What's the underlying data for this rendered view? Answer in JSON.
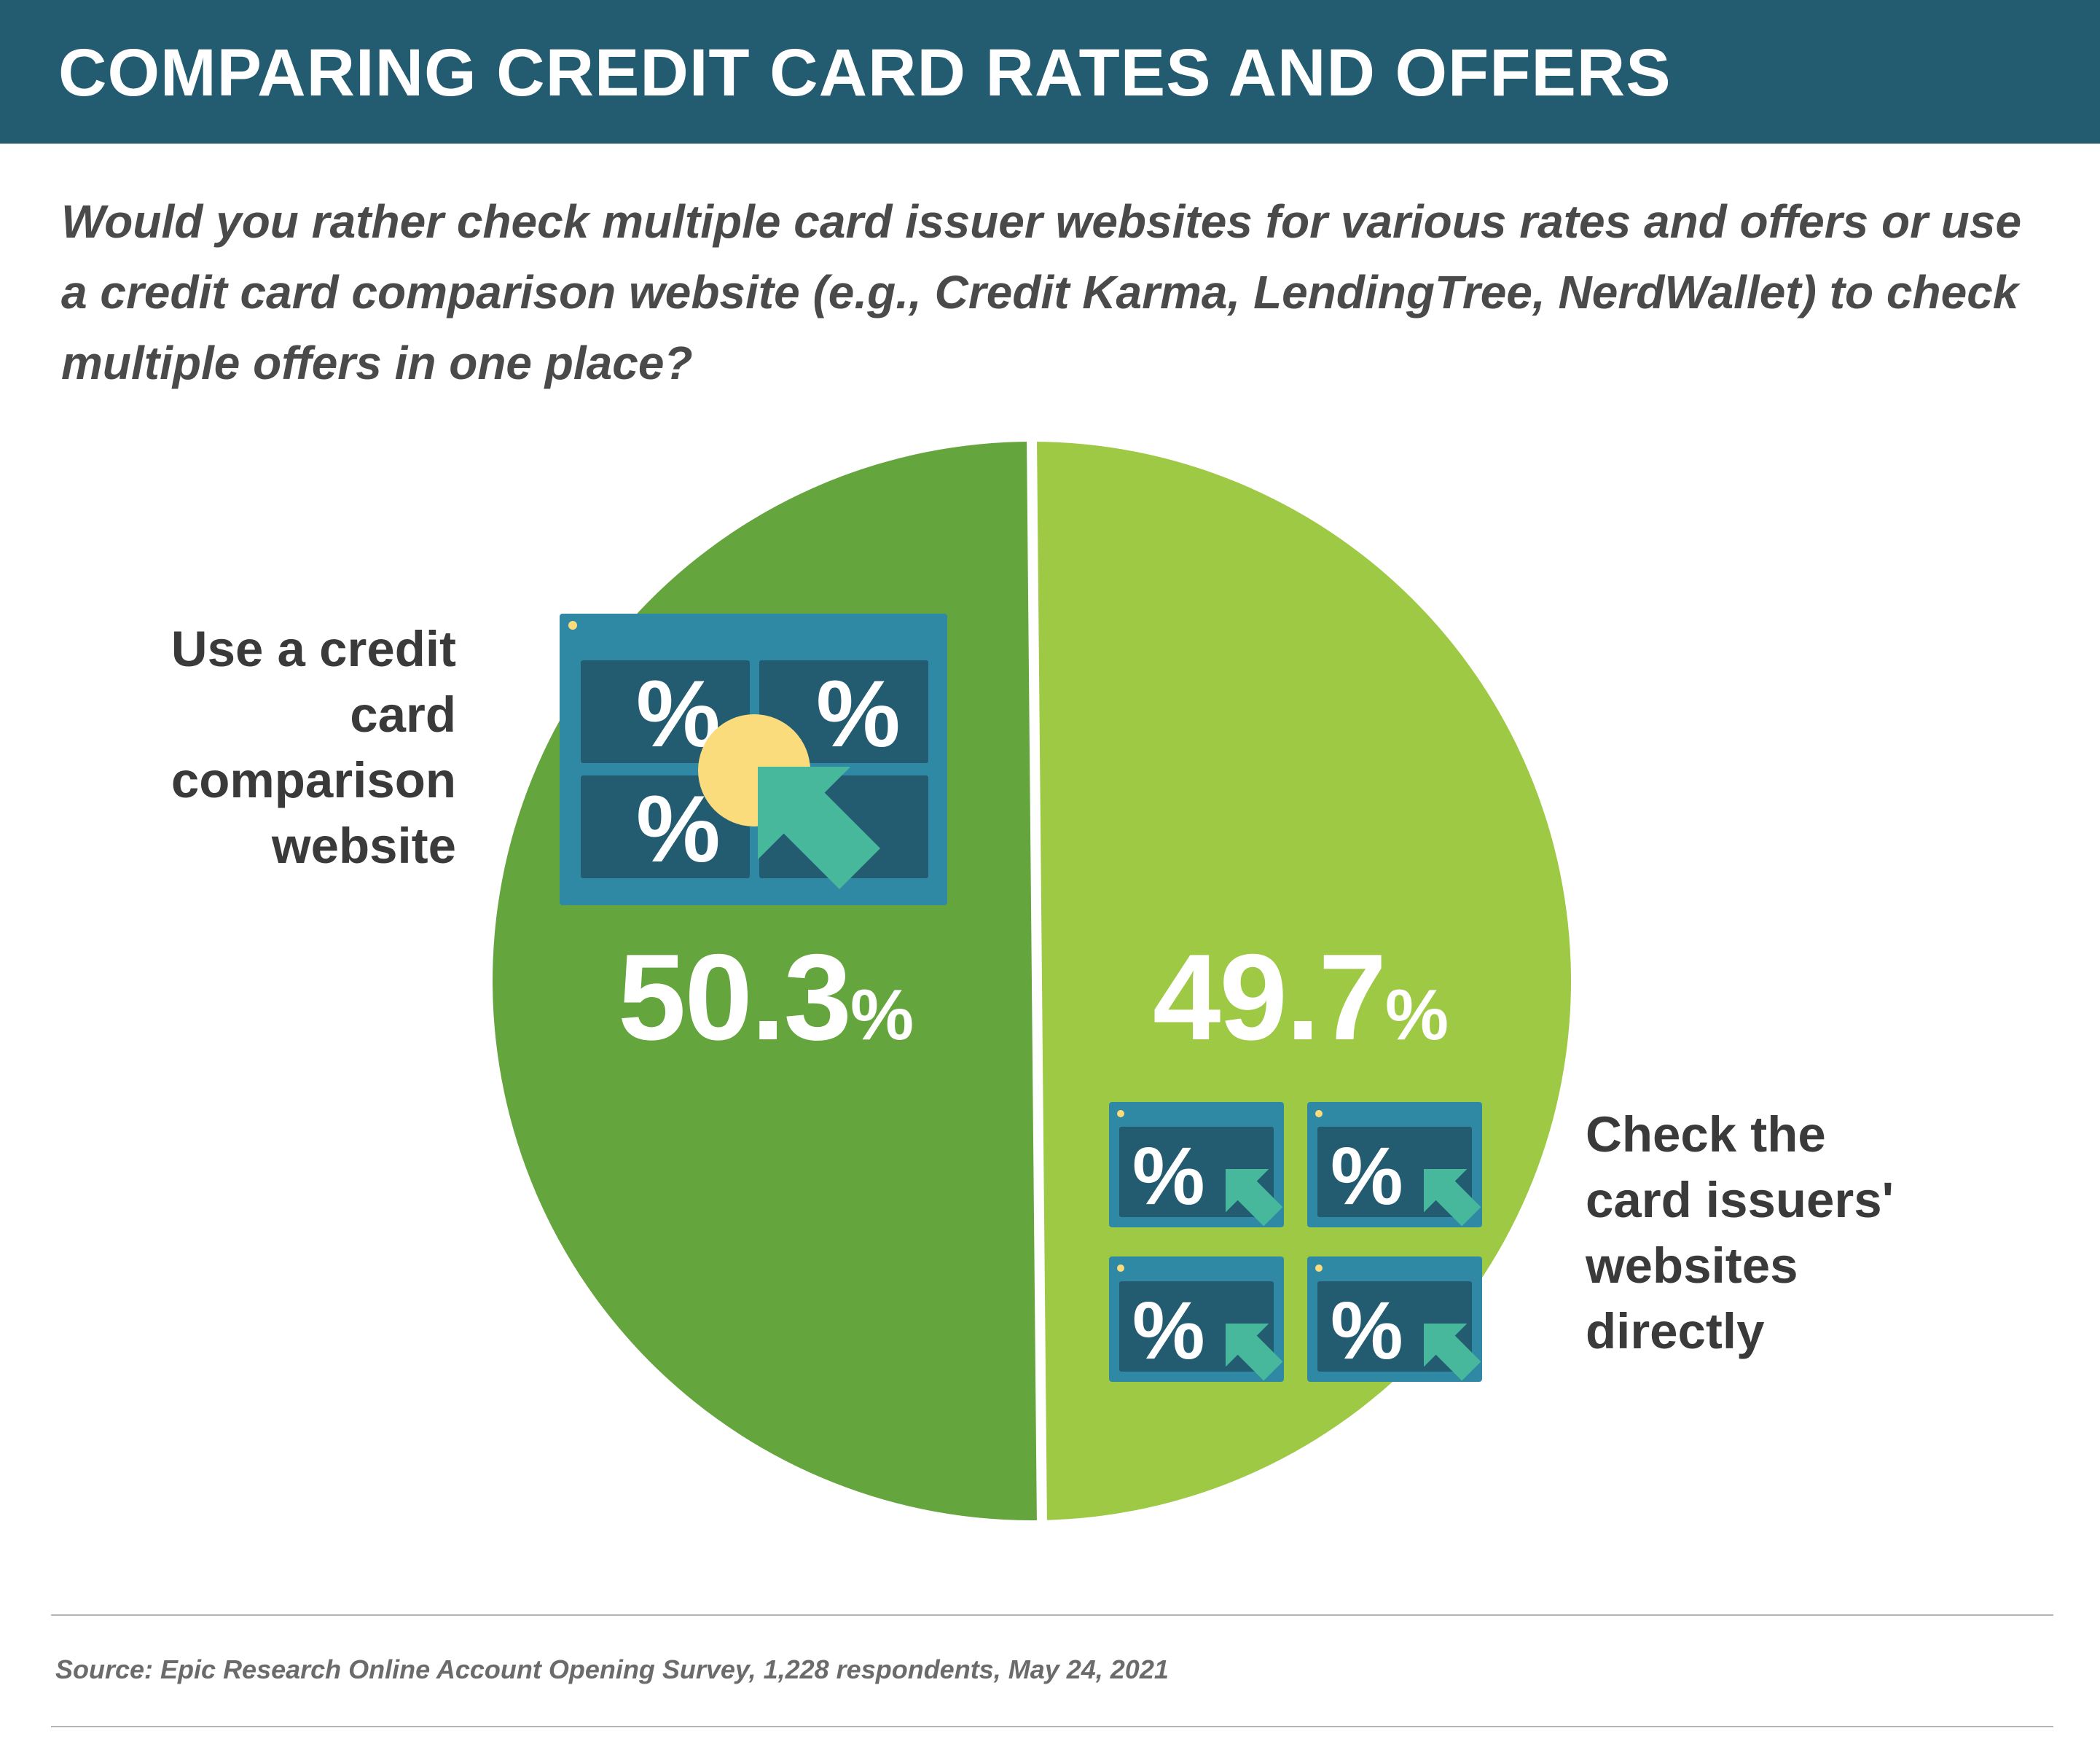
{
  "header": {
    "title": "COMPARING CREDIT CARD RATES AND OFFERS"
  },
  "subtitle": {
    "lines": [
      "Would you rather check multiple card issuer websites for various rates and offers or use",
      "a credit card comparison website (e.g., Credit Karma, LendingTree, NerdWallet) to check",
      "multiple offers in one place?"
    ]
  },
  "chart_data": {
    "type": "pie",
    "title": "COMPARING CREDIT CARD RATES AND OFFERS",
    "slices": [
      {
        "label_lines": [
          "Use a credit",
          "card",
          "comparison",
          "website"
        ],
        "value": 50.3,
        "value_text": "50.3",
        "unit": "%",
        "color": "#65a53d"
      },
      {
        "label_lines": [
          "Check the",
          "card issuers'",
          "websites",
          "directly"
        ],
        "value": 49.7,
        "value_text": "49.7",
        "unit": "%",
        "color": "#9dc945"
      }
    ]
  },
  "icons": {
    "left": "comparison-website-icon",
    "right": "issuer-websites-icon",
    "percent_glyph": "%"
  },
  "colors": {
    "header_bg": "#235c70",
    "window_frame": "#2f89a5",
    "window_panel": "#235c70",
    "cursor": "#47b89b",
    "click_highlight": "#fbdc7d"
  },
  "footer": {
    "source": "Source: Epic Research Online Account Opening Survey, 1,228 respondents, May 24, 2021"
  }
}
